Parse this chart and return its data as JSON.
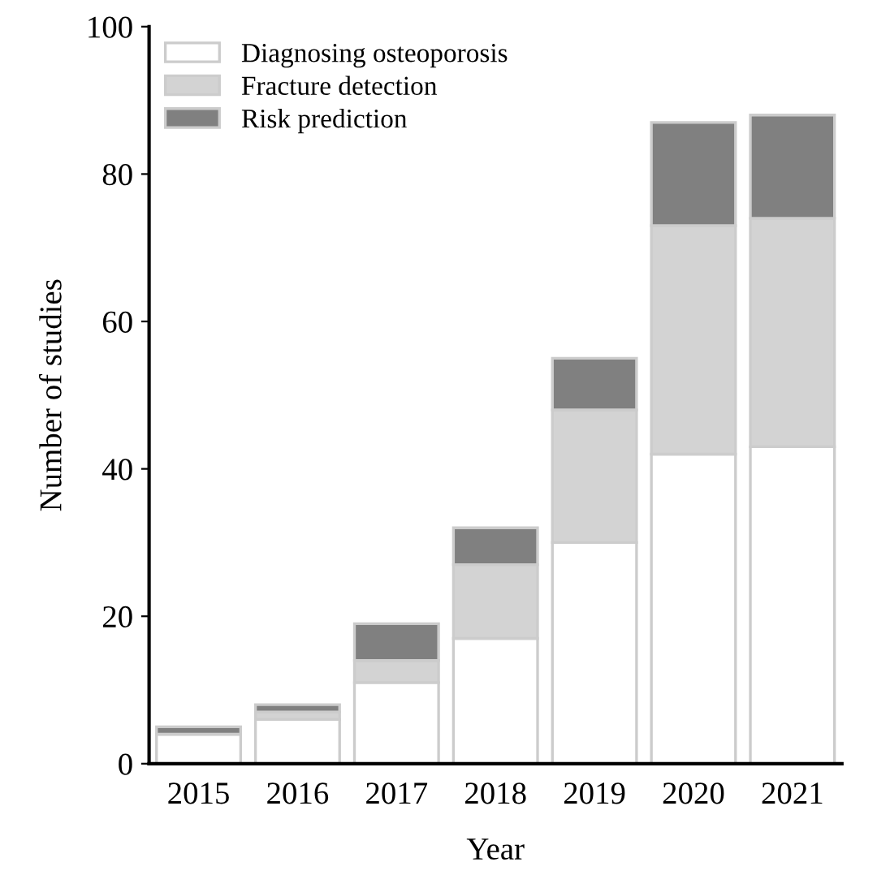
{
  "chart_data": {
    "type": "bar",
    "stacked": true,
    "xlabel": "Year",
    "ylabel": "Number of studies",
    "categories": [
      "2015",
      "2016",
      "2017",
      "2018",
      "2019",
      "2020",
      "2021"
    ],
    "series": [
      {
        "name": "Diagnosing osteoporosis",
        "color": "#ffffff",
        "values": [
          4,
          6,
          11,
          17,
          30,
          42,
          43
        ]
      },
      {
        "name": "Fracture detection",
        "color": "#d3d3d3",
        "values": [
          0,
          1,
          3,
          10,
          18,
          31,
          31
        ]
      },
      {
        "name": "Risk prediction",
        "color": "#808080",
        "values": [
          1,
          1,
          5,
          5,
          7,
          14,
          14
        ]
      }
    ],
    "ylim": [
      0,
      100
    ],
    "yticks": [
      0,
      20,
      40,
      60,
      80,
      100
    ],
    "grid": false,
    "legend": "top left"
  }
}
